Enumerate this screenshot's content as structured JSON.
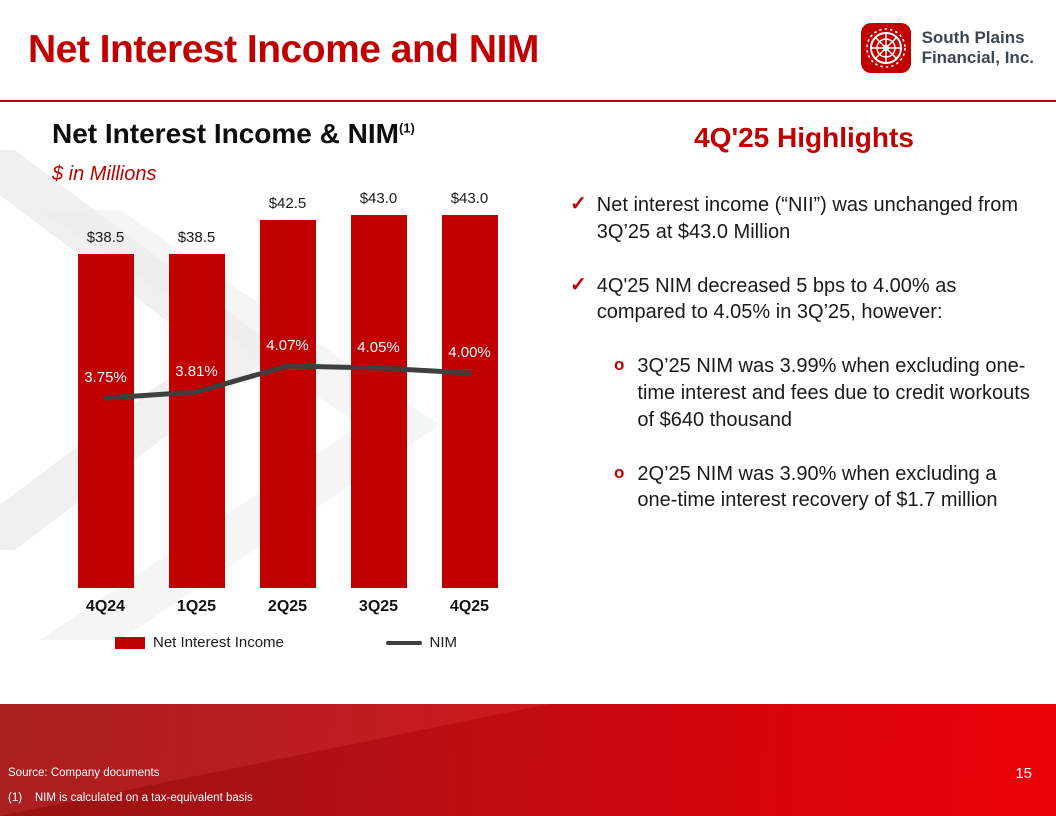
{
  "slide": {
    "title": "Net Interest Income and NIM",
    "page_number": "15",
    "footer": {
      "source": "Source: Company documents",
      "footnote": "(1)    NIM is calculated on a tax-equivalent basis"
    },
    "logo": {
      "line1": "South Plains",
      "line2": "Financial, Inc."
    }
  },
  "chart": {
    "heading": "Net Interest Income & NIM",
    "heading_superscript": "(1)",
    "subtitle": "$ in Millions",
    "legend": [
      {
        "label": "Net Interest Income",
        "type": "bar",
        "color": "#C00000"
      },
      {
        "label": "NIM",
        "type": "line",
        "color": "#3f3f3f"
      }
    ]
  },
  "chart_data": {
    "type": "bar",
    "title": "Net Interest Income & NIM (1)",
    "subtitle": "$ in Millions",
    "categories": [
      "4Q24",
      "1Q25",
      "2Q25",
      "3Q25",
      "4Q25"
    ],
    "series": [
      {
        "name": "Net Interest Income",
        "type": "bar",
        "unit": "$ Millions",
        "color": "#C00000",
        "values": [
          38.5,
          38.5,
          42.5,
          43.0,
          43.0
        ],
        "labels": [
          "$38.5",
          "$38.5",
          "$42.5",
          "$43.0",
          "$43.0"
        ],
        "axis": {
          "min": 0,
          "max": 45
        }
      },
      {
        "name": "NIM",
        "type": "line",
        "unit": "%",
        "color": "#3f3f3f",
        "values": [
          3.75,
          3.81,
          4.07,
          4.05,
          4.0
        ],
        "labels": [
          "3.75%",
          "3.81%",
          "4.07%",
          "4.05%",
          "4.00%"
        ]
      }
    ],
    "legend_position": "bottom",
    "grid": false
  },
  "highlights": {
    "heading": "4Q'25 Highlights",
    "markers": {
      "check": "✓",
      "circle": "o"
    },
    "bullets": [
      {
        "level": 1,
        "marker": "check",
        "text": "Net interest income (“NII”) was unchanged from 3Q’25 at $43.0 Million"
      },
      {
        "level": 1,
        "marker": "check",
        "text": "4Q'25 NIM decreased 5 bps to 4.00% as compared to 4.05% in 3Q’25, however:"
      },
      {
        "level": 2,
        "marker": "circle",
        "text": "3Q’25 NIM was 3.99% when excluding one-time interest and fees due to credit workouts of $640 thousand"
      },
      {
        "level": 2,
        "marker": "circle",
        "text": "2Q’25 NIM was 3.90% when excluding a one-time interest recovery of $1.7 million"
      }
    ]
  }
}
